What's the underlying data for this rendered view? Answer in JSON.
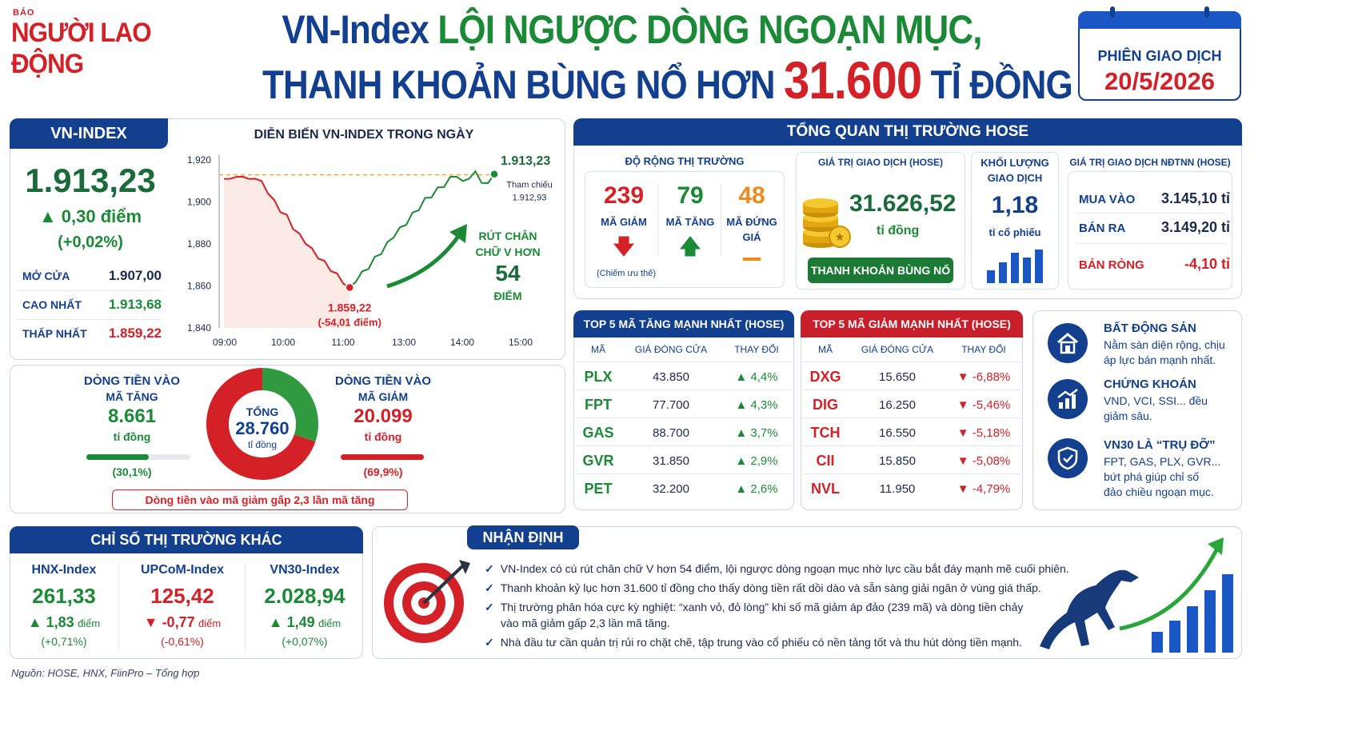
{
  "brand": {
    "small": "BÁO",
    "name": "NGƯỜI LAO ĐỘNG"
  },
  "headline": {
    "line1_a": "VN-Index",
    "line1_b": "LỘI NGƯỢC DÒNG NGOẠN MỤC,",
    "line2_a": "THANH KHOẢN BÙNG NỔ HƠN",
    "line2_num": "31.600",
    "line2_b": "TỈ ĐỒNG"
  },
  "session": {
    "label": "PHIÊN GIAO DỊCH",
    "date": "20/5/2026"
  },
  "vnindex": {
    "header": "VN-INDEX",
    "value": "1.913,23",
    "change": "▲ 0,30 điểm",
    "pct": "(+0,02%)",
    "stats": [
      {
        "label": "MỞ CỬA",
        "value": "1.907,00",
        "color": "#1b2a4a"
      },
      {
        "label": "CAO NHẤT",
        "value": "1.913,68",
        "color": "#1b8a36"
      },
      {
        "label": "THẤP NHẤT",
        "value": "1.859,22",
        "color": "#d42027"
      }
    ]
  },
  "chart_data": {
    "type": "line",
    "title": "DIỄN BIẾN VN-INDEX TRONG NGÀY",
    "x_ticks": [
      "09:00",
      "10:00",
      "11:00",
      "13:00",
      "14:00",
      "15:00"
    ],
    "y_ticks": [
      "1,920",
      "1,900",
      "1,880",
      "1,860",
      "1,840"
    ],
    "ylim": [
      1840,
      1920
    ],
    "reference": 1912.93,
    "reference_label": "Tham chiếu",
    "reference_value": "1.912,93",
    "series": [
      {
        "values": [
          1910,
          1912,
          1911,
          1913,
          1910,
          1912,
          1909,
          1905,
          1900,
          1896,
          1893,
          1888,
          1884,
          1881,
          1877,
          1874,
          1871,
          1868,
          1865,
          1862,
          1859.22,
          1863,
          1866,
          1869,
          1873,
          1876,
          1880,
          1884,
          1887,
          1890,
          1894,
          1897,
          1901,
          1903,
          1906,
          1908,
          1911,
          1913,
          1909,
          1912,
          1913.68,
          1910,
          1908,
          1913.23
        ]
      }
    ],
    "low_label": "1.859,22",
    "low_delta": "(-54,01 điểm)",
    "last_label": "1.913,23",
    "annotation": {
      "line1": "RÚT CHÂN",
      "line2": "CHỮ V HƠN",
      "num": "54",
      "unit": "ĐIỂM"
    }
  },
  "flow": {
    "in_up": {
      "l1": "DÒNG TIỀN VÀO",
      "l2": "MÃ TĂNG",
      "value": "8.661",
      "unit": "tỉ đồng",
      "pct": "(30,1%)",
      "share": 0.301
    },
    "in_down": {
      "l1": "DÒNG TIỀN VÀO",
      "l2": "MÃ GIẢM",
      "value": "20.099",
      "unit": "tỉ đồng",
      "pct": "(69,9%)",
      "share": 0.699
    },
    "total": {
      "label": "TỔNG",
      "value": "28.760",
      "unit": "tỉ đồng"
    },
    "note": "Dòng tiền vào mã giảm gấp 2,3 lần mã tăng"
  },
  "hose": {
    "header": "TỔNG QUAN THỊ TRƯỜNG HOSE",
    "breadth": {
      "title": "ĐỘ RỘNG THỊ TRƯỜNG",
      "down": "239",
      "down_label": "MÃ GIẢM",
      "up": "79",
      "up_label": "MÃ TĂNG",
      "flat": "48",
      "flat_l1": "MÃ ĐỨNG",
      "flat_l2": "GIÁ",
      "note": "(Chiếm ưu thế)"
    },
    "value": {
      "title": "GIÁ TRỊ GIAO DỊCH (HOSE)",
      "amount": "31.626,52",
      "unit": "tỉ đồng",
      "badge": "THANH KHOẢN BÙNG NỔ"
    },
    "volume": {
      "l1": "KHỐI LƯỢNG",
      "l2": "GIAO DỊCH",
      "amount": "1,18",
      "unit": "tỉ cổ phiếu"
    },
    "foreign": {
      "title": "GIÁ TRỊ GIAO DỊCH NĐTNN (HOSE)",
      "rows": [
        {
          "label": "MUA VÀO",
          "value": "3.145,10 tỉ"
        },
        {
          "label": "BÁN RA",
          "value": "3.149,20 tỉ"
        },
        {
          "label": "BÁN RÒNG",
          "value": "-4,10 tỉ"
        }
      ]
    }
  },
  "gainers": {
    "header": "TOP 5 MÃ TĂNG MẠNH NHẤT (HOSE)",
    "cols": [
      "MÃ",
      "GIÁ ĐÓNG CỬA",
      "THAY ĐỔI"
    ],
    "rows": [
      {
        "code": "PLX",
        "price": "43.850",
        "chg": "▲ 4,4%"
      },
      {
        "code": "FPT",
        "price": "77.700",
        "chg": "▲ 4,3%"
      },
      {
        "code": "GAS",
        "price": "88.700",
        "chg": "▲ 3,7%"
      },
      {
        "code": "GVR",
        "price": "31.850",
        "chg": "▲ 2,9%"
      },
      {
        "code": "PET",
        "price": "32.200",
        "chg": "▲ 2,6%"
      }
    ]
  },
  "losers": {
    "header": "TOP 5 MÃ GIẢM MẠNH NHẤT (HOSE)",
    "cols": [
      "MÃ",
      "GIÁ ĐÓNG CỬA",
      "THAY ĐỔI"
    ],
    "rows": [
      {
        "code": "DXG",
        "price": "15.650",
        "chg": "▼ -6,88%"
      },
      {
        "code": "DIG",
        "price": "16.250",
        "chg": "▼ -5,46%"
      },
      {
        "code": "TCH",
        "price": "16.550",
        "chg": "▼ -5,18%"
      },
      {
        "code": "CII",
        "price": "15.850",
        "chg": "▼ -5,08%"
      },
      {
        "code": "NVL",
        "price": "11.950",
        "chg": "▼ -4,79%"
      }
    ]
  },
  "sectors": [
    {
      "icon": "building-icon",
      "title": "BẤT ĐỘNG SẢN",
      "l1": "Nằm sàn diện rộng, chịu",
      "l2": "áp lực bán mạnh nhất."
    },
    {
      "icon": "stock-chart-icon",
      "title": "CHỨNG KHOÁN",
      "l1": "VND, VCI, SSI... đều",
      "l2": "giảm sâu."
    },
    {
      "icon": "shield-icon",
      "title": "VN30 LÀ “TRỤ ĐỠ”",
      "l1": "FPT, GAS, PLX, GVR...",
      "l2": "bứt phá giúp chỉ số",
      "l3": "đảo chiều ngoạn mục."
    }
  ],
  "other": {
    "header": "CHỈ SỐ THỊ TRƯỜNG KHÁC",
    "items": [
      {
        "name": "HNX-Index",
        "value": "261,33",
        "chg": "▲ 1,83",
        "unit": "điểm",
        "pct": "(+0,71%)",
        "color": "#1b8a36"
      },
      {
        "name": "UPCoM-Index",
        "value": "125,42",
        "chg": "▼ -0,77",
        "unit": "điểm",
        "pct": "(-0,61%)",
        "color": "#d42027"
      },
      {
        "name": "VN30-Index",
        "value": "2.028,94",
        "chg": "▲ 1,49",
        "unit": "điểm",
        "pct": "(+0,07%)",
        "color": "#1b8a36"
      }
    ]
  },
  "outlook": {
    "header": "NHẬN ĐỊNH",
    "bullets": [
      "VN-Index có cú rút chân chữ V hơn 54 điểm, lội ngược dòng ngoạn mục nhờ lực cầu bắt đáy mạnh mẽ cuối phiên.",
      "Thanh khoản kỷ lục hơn 31.600 tỉ đồng cho thấy dòng tiền rất dồi dào và sẵn sàng giải ngân ở vùng giá thấp.",
      "Thị trường phân hóa cực kỳ nghiệt: “xanh vỏ, đỏ lòng” khi số mã giảm áp đảo (239 mã) và dòng tiền chảy",
      "vào mã giảm gấp 2,3 lần mã tăng.",
      "Nhà đầu tư cần quản trị rủi ro chặt chẽ, tập trung vào cổ phiếu có nền tảng tốt và thu hút dòng tiền mạnh."
    ]
  },
  "source": "Nguồn: HOSE, HNX, FiinPro – Tổng hợp"
}
